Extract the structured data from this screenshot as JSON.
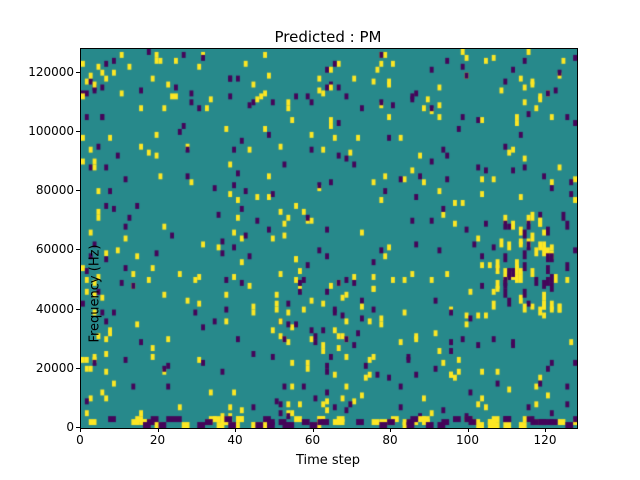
{
  "chart_data": {
    "type": "heatmap",
    "title": "Predicted : PM",
    "xlabel": "Time step",
    "ylabel": "Frequency (Hz)",
    "xlim": [
      0,
      128
    ],
    "ylim": [
      0,
      128000
    ],
    "x_ticks": [
      0,
      20,
      40,
      60,
      80,
      100,
      120
    ],
    "y_ticks": [
      0,
      20000,
      40000,
      60000,
      80000,
      100000,
      120000
    ],
    "colormap": "viridis",
    "legend": "none",
    "grid_lines": "off",
    "colors": {
      "background": "#27898b",
      "yellow": "#fde724",
      "purple": "#440559",
      "axis": "#000000",
      "figure_background": "#ffffff"
    },
    "grid": {
      "nx": 128,
      "ny": 128,
      "seed": 1337
    },
    "features": [
      {
        "desc": "sparse high cells over whole field",
        "color": "yellow",
        "x": [
          0,
          128
        ],
        "y": [
          3,
          126
        ],
        "count": 250,
        "tall": 2
      },
      {
        "desc": "sparse low cells over whole field",
        "color": "purple",
        "x": [
          0,
          128
        ],
        "y": [
          3,
          126
        ],
        "count": 190,
        "tall": 2
      },
      {
        "desc": "dense bottom band high",
        "color": "yellow",
        "x": [
          0,
          128
        ],
        "y": [
          0,
          3
        ],
        "count": 55,
        "tall": 2,
        "wide": 2
      },
      {
        "desc": "dense bottom band low",
        "color": "purple",
        "x": [
          0,
          128
        ],
        "y": [
          0,
          3
        ],
        "count": 45,
        "tall": 2,
        "wide": 2
      },
      {
        "desc": "left-edge activity high",
        "color": "yellow",
        "x": [
          0,
          7
        ],
        "y": [
          4,
          126
        ],
        "count": 22,
        "tall": 2
      },
      {
        "desc": "left-edge activity low",
        "color": "purple",
        "x": [
          0,
          7
        ],
        "y": [
          4,
          126
        ],
        "count": 14,
        "tall": 2
      },
      {
        "desc": "right cluster 40k-75k high",
        "color": "yellow",
        "x": [
          106,
          124
        ],
        "y": [
          38,
          74
        ],
        "count": 38,
        "tall": 3
      },
      {
        "desc": "right cluster 40k-75k low",
        "color": "purple",
        "x": [
          108,
          126
        ],
        "y": [
          40,
          72
        ],
        "count": 26,
        "tall": 3
      },
      {
        "desc": "mid band 55-75 high",
        "color": "yellow",
        "x": [
          50,
          78
        ],
        "y": [
          2,
          60
        ],
        "count": 30,
        "tall": 2
      },
      {
        "desc": "mid band 55-75 low",
        "color": "purple",
        "x": [
          52,
          78
        ],
        "y": [
          2,
          60
        ],
        "count": 24,
        "tall": 2
      },
      {
        "desc": "top band near 120k high",
        "color": "yellow",
        "x": [
          0,
          128
        ],
        "y": [
          108,
          127
        ],
        "count": 28,
        "tall": 2
      },
      {
        "desc": "top band near 120k low",
        "color": "purple",
        "x": [
          0,
          128
        ],
        "y": [
          108,
          127
        ],
        "count": 20,
        "tall": 2
      }
    ]
  }
}
